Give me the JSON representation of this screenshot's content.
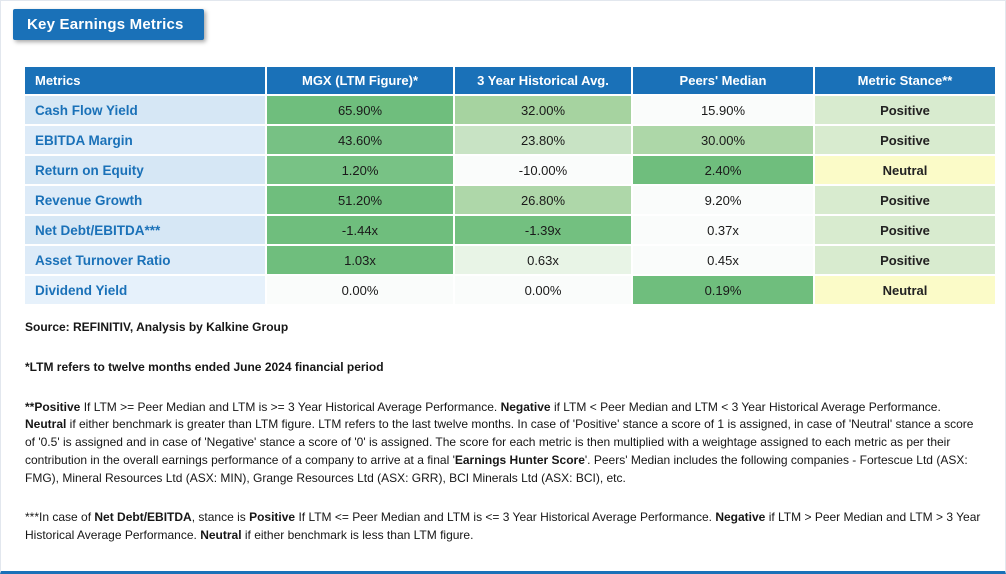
{
  "colors": {
    "header_bg": "#1A71B8",
    "header_text": "#FFFFFF",
    "metric_text": "#1A71B8",
    "positive_stance_bg": "#D8EBCF",
    "neutral_stance_bg": "#FBFBC8",
    "strong_green": "#6FBE7D"
  },
  "chart_data": {
    "type": "table",
    "title": "Key Earnings Metrics",
    "columns": [
      "Metrics",
      "MGX (LTM Figure)*",
      "3 Year Historical Avg.",
      "Peers' Median",
      "Metric Stance**"
    ],
    "rows": [
      [
        "Cash Flow Yield",
        "65.90%",
        "32.00%",
        "15.90%",
        "Positive"
      ],
      [
        "EBITDA Margin",
        "43.60%",
        "23.80%",
        "30.00%",
        "Positive"
      ],
      [
        "Return on Equity",
        "1.20%",
        "-10.00%",
        "2.40%",
        "Neutral"
      ],
      [
        "Revenue Growth",
        "51.20%",
        "26.80%",
        "9.20%",
        "Positive"
      ],
      [
        "Net Debt/EBITDA***",
        "-1.44x",
        "-1.39x",
        "0.37x",
        "Positive"
      ],
      [
        "Asset Turnover Ratio",
        "1.03x",
        "0.63x",
        "0.45x",
        "Positive"
      ],
      [
        "Dividend Yield",
        "0.00%",
        "0.00%",
        "0.19%",
        "Neutral"
      ]
    ]
  },
  "cell_bg": {
    "metric_col": [
      "#D6E7F5",
      "#DDEBF8",
      "#D6E7F5",
      "#DDEBF8",
      "#D6E7F5",
      "#DDEBF8",
      "#E6F1FB"
    ],
    "values": [
      [
        "#6FBE7D",
        "#A6D3A0",
        "#FAFCFB",
        "#D8EBCF"
      ],
      [
        "#77C184",
        "#C8E3C4",
        "#ADD7A8",
        "#D8EBCF"
      ],
      [
        "#78C285",
        "#FAFCFB",
        "#6FBE7D",
        "#FBFBC8"
      ],
      [
        "#6FBE7D",
        "#AED7A9",
        "#FAFCFB",
        "#D8EBCF"
      ],
      [
        "#6FBE7D",
        "#73C080",
        "#FAFCFB",
        "#D8EBCF"
      ],
      [
        "#6FBE7D",
        "#E8F4E6",
        "#FAFCFB",
        "#D8EBCF"
      ],
      [
        "#FAFCFB",
        "#FAFCFB",
        "#6FBE7D",
        "#FBFBC8"
      ]
    ]
  },
  "notes": [
    [
      {
        "t": "Source: REFINITIV, Analysis by Kalkine Group",
        "b": true
      }
    ],
    [
      {
        "t": "*LTM refers to twelve months ended June 2024 financial period",
        "b": true
      }
    ],
    [
      {
        "t": "**Positive",
        "b": true
      },
      {
        "t": " If LTM >= Peer Median and LTM is >= 3 Year Historical Average Performance. ",
        "b": false
      },
      {
        "t": "Negative",
        "b": true
      },
      {
        "t": " if LTM < Peer Median and LTM < 3 Year Historical Average Performance. ",
        "b": false
      },
      {
        "t": "Neutral",
        "b": true
      },
      {
        "t": " if either benchmark is greater than LTM figure. LTM refers to the last twelve months. In case of 'Positive' stance a score of 1 is assigned, in case of 'Neutral' stance a score of '0.5' is assigned and in case of 'Negative' stance a score of '0' is assigned. The score for each metric is then multiplied with a weightage assigned to each metric as per their contribution in the overall earnings performance of a company to arrive at a final '",
        "b": false
      },
      {
        "t": "Earnings Hunter Score",
        "b": true
      },
      {
        "t": "'. Peers' Median includes the following companies - Fortescue Ltd (ASX: FMG), Mineral Resources Ltd (ASX: MIN), Grange Resources Ltd (ASX: GRR), BCI Minerals Ltd (ASX: BCI), etc.",
        "b": false
      }
    ],
    [
      {
        "t": "***In case of ",
        "b": false
      },
      {
        "t": "Net Debt/EBITDA",
        "b": true
      },
      {
        "t": ", stance is ",
        "b": false
      },
      {
        "t": "Positive",
        "b": true
      },
      {
        "t": " If LTM <= Peer Median and LTM is <= 3 Year Historical Average Performance. ",
        "b": false
      },
      {
        "t": "Negative",
        "b": true
      },
      {
        "t": " if LTM > Peer Median and LTM > 3 Year Historical Average Performance. ",
        "b": false
      },
      {
        "t": "Neutral",
        "b": true
      },
      {
        "t": " if either benchmark is less than LTM figure.",
        "b": false
      }
    ]
  ]
}
